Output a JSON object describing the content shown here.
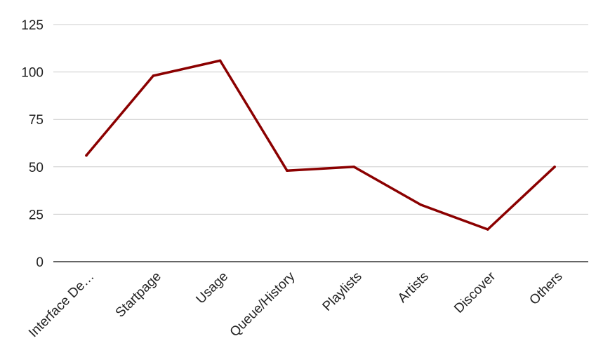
{
  "chart_data": {
    "type": "line",
    "categories": [
      "Interface De…",
      "Startpage",
      "Usage",
      "Queue/History",
      "Playlists",
      "Artists",
      "Discover",
      "Others"
    ],
    "series": [
      {
        "values": [
          56,
          98,
          106,
          48,
          50,
          30,
          17,
          50
        ]
      }
    ],
    "y_ticks": [
      "0",
      "25",
      "50",
      "75",
      "100",
      "125"
    ],
    "ylim": [
      0,
      125
    ],
    "xlabel": "",
    "ylabel": "",
    "grid": "horizontal",
    "legend": "none",
    "colors": {
      "series": "#8b0000",
      "grid": "#cccccc",
      "axis": "#333333"
    }
  }
}
